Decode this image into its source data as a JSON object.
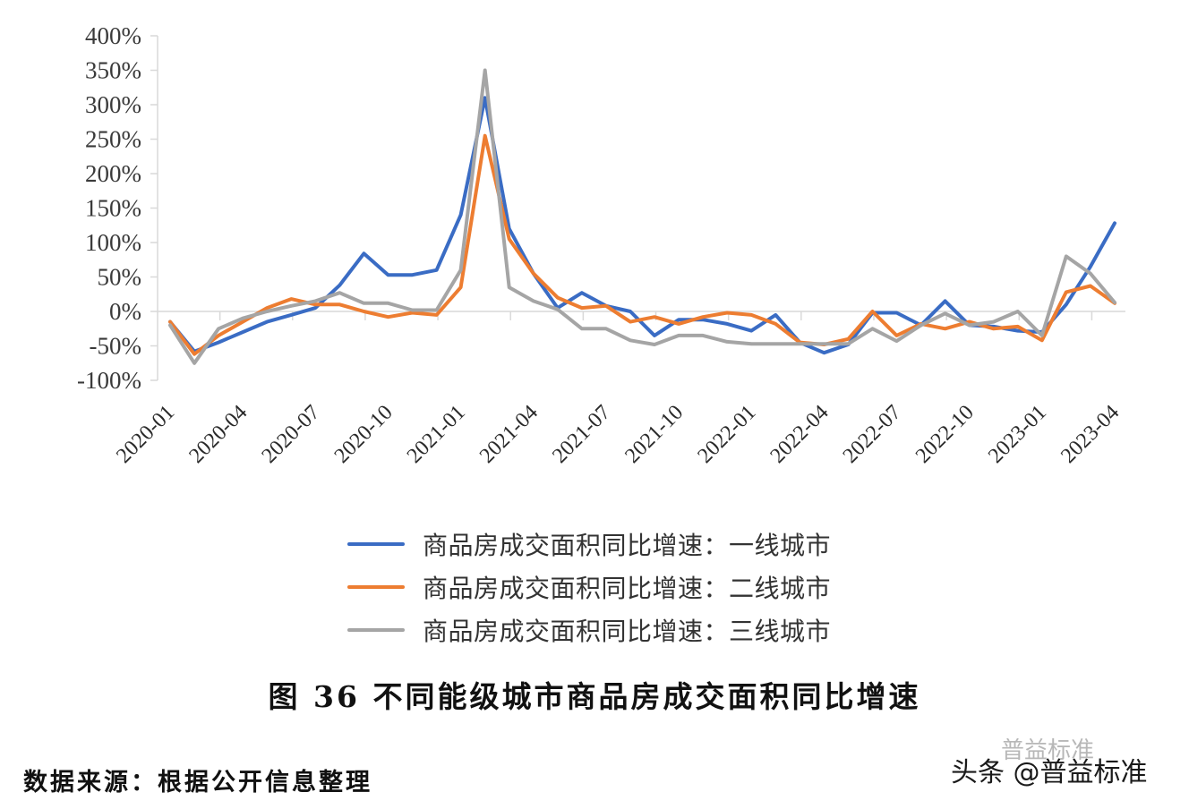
{
  "chart_data": {
    "type": "line",
    "title": "图 36  不同能级城市商品房成交面积同比增速",
    "xlabel": "",
    "ylabel": "",
    "ylim": [
      -100,
      400
    ],
    "yticks": [
      "400%",
      "350%",
      "300%",
      "250%",
      "200%",
      "150%",
      "100%",
      "50%",
      "0%",
      "-50%",
      "-100%"
    ],
    "ytick_values": [
      400,
      350,
      300,
      250,
      200,
      150,
      100,
      50,
      0,
      -50,
      -100
    ],
    "xtick_labels": [
      "2020-01",
      "2020-04",
      "2020-07",
      "2020-10",
      "2021-01",
      "2021-04",
      "2021-07",
      "2021-10",
      "2022-01",
      "2022-04",
      "2022-07",
      "2022-10",
      "2023-01",
      "2023-04"
    ],
    "grid": false,
    "legend_position": "bottom",
    "x": [
      "2020-01",
      "2020-02",
      "2020-03",
      "2020-04",
      "2020-05",
      "2020-06",
      "2020-07",
      "2020-08",
      "2020-09",
      "2020-10",
      "2020-11",
      "2020-12",
      "2021-01",
      "2021-02",
      "2021-03",
      "2021-04",
      "2021-05",
      "2021-06",
      "2021-07",
      "2021-08",
      "2021-09",
      "2021-10",
      "2021-11",
      "2021-12",
      "2022-01",
      "2022-02",
      "2022-03",
      "2022-04",
      "2022-05",
      "2022-06",
      "2022-07",
      "2022-08",
      "2022-09",
      "2022-10",
      "2022-11",
      "2022-12",
      "2023-01",
      "2023-02",
      "2023-03",
      "2023-04"
    ],
    "series": [
      {
        "name": "商品房成交面积同比增速：一线城市",
        "color": "#3a6cc4",
        "values": [
          -15,
          -58,
          -45,
          -30,
          -15,
          -5,
          5,
          38,
          84,
          53,
          53,
          60,
          140,
          310,
          120,
          55,
          5,
          27,
          8,
          0,
          -35,
          -12,
          -12,
          -18,
          -28,
          -5,
          -45,
          -60,
          -48,
          -2,
          -2,
          -20,
          15,
          -20,
          -22,
          -28,
          -30,
          10,
          65,
          128
        ]
      },
      {
        "name": "商品房成交面积同比增速：二线城市",
        "color": "#ed7d31",
        "values": [
          -15,
          -62,
          -35,
          -15,
          5,
          18,
          10,
          10,
          0,
          -8,
          -2,
          -5,
          35,
          255,
          105,
          55,
          20,
          5,
          8,
          -15,
          -8,
          -18,
          -8,
          -2,
          -5,
          -18,
          -45,
          -48,
          -40,
          0,
          -35,
          -18,
          -25,
          -15,
          -25,
          -22,
          -42,
          28,
          37,
          12
        ]
      },
      {
        "name": "商品房成交面积同比增速：三线城市",
        "color": "#a5a5a5",
        "values": [
          -20,
          -75,
          -25,
          -10,
          0,
          8,
          15,
          27,
          12,
          12,
          2,
          2,
          60,
          350,
          35,
          15,
          3,
          -25,
          -25,
          -42,
          -48,
          -35,
          -35,
          -44,
          -47,
          -47,
          -47,
          -47,
          -47,
          -25,
          -43,
          -20,
          -3,
          -20,
          -15,
          0,
          -35,
          80,
          55,
          13
        ]
      }
    ]
  },
  "legend": {
    "items": [
      {
        "label": "商品房成交面积同比增速：一线城市",
        "color": "#3a6cc4"
      },
      {
        "label": "商品房成交面积同比增速：二线城市",
        "color": "#ed7d31"
      },
      {
        "label": "商品房成交面积同比增速：三线城市",
        "color": "#a5a5a5"
      }
    ]
  },
  "caption": "图 36  不同能级城市商品房成交面积同比增速",
  "source": "数据来源：根据公开信息整理",
  "watermark": {
    "text": "头条 @普益标准",
    "ghost_text": "普益标准"
  }
}
